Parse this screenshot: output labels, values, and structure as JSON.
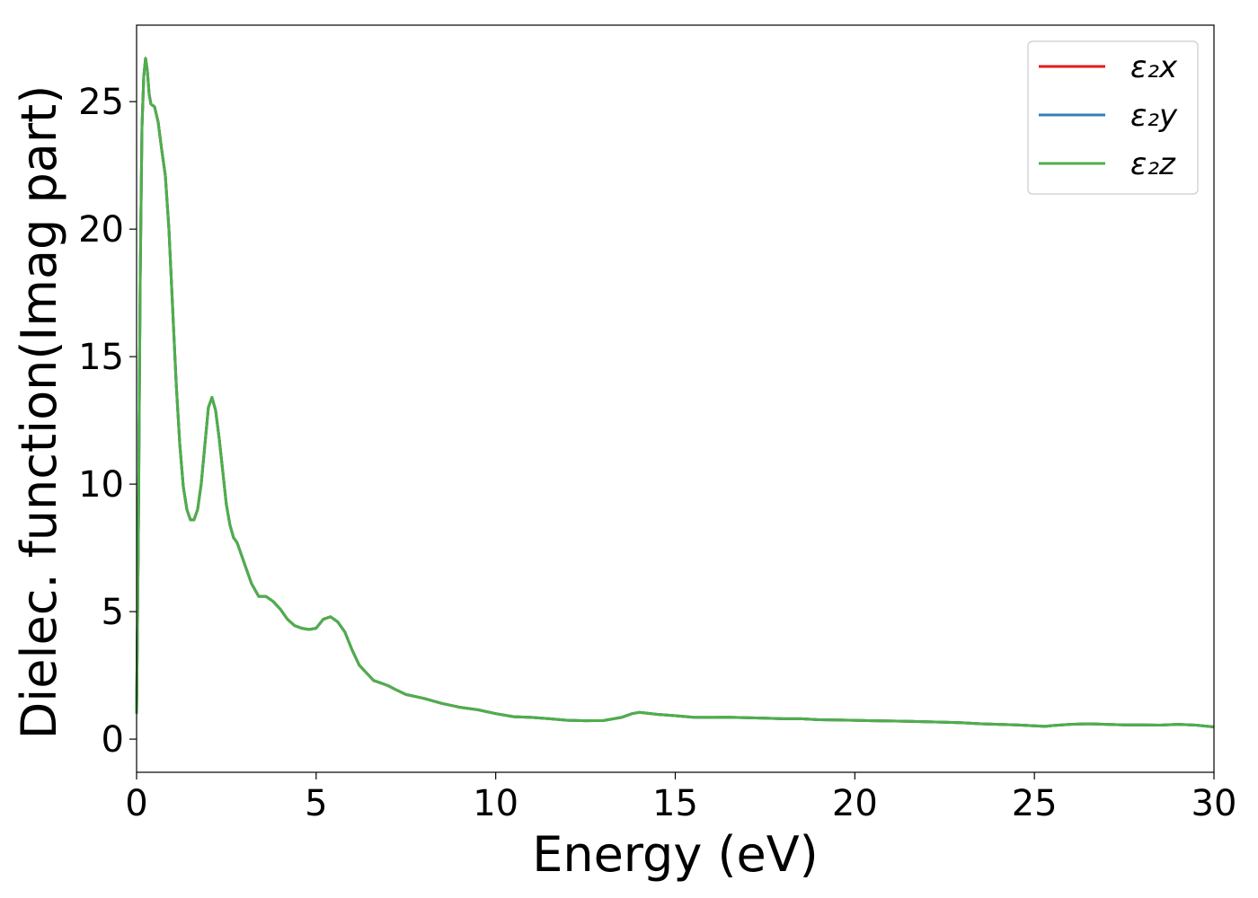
{
  "chart_data": {
    "type": "line",
    "xlabel": "Energy (eV)",
    "ylabel": "Dielec. function(Imag part)",
    "xlim": [
      0,
      30
    ],
    "ylim": [
      -1.3,
      28
    ],
    "xticks": [
      0,
      5,
      10,
      15,
      20,
      25,
      30
    ],
    "yticks": [
      0,
      5,
      10,
      15,
      20,
      25
    ],
    "grid": false,
    "legend_position": "top-right",
    "x": [
      0,
      0.05,
      0.1,
      0.15,
      0.2,
      0.25,
      0.3,
      0.35,
      0.4,
      0.5,
      0.6,
      0.7,
      0.8,
      0.9,
      1.0,
      1.1,
      1.2,
      1.3,
      1.4,
      1.5,
      1.6,
      1.7,
      1.8,
      1.9,
      2.0,
      2.1,
      2.2,
      2.3,
      2.4,
      2.5,
      2.6,
      2.7,
      2.8,
      2.9,
      3.0,
      3.2,
      3.4,
      3.6,
      3.8,
      4.0,
      4.2,
      4.4,
      4.6,
      4.8,
      5.0,
      5.2,
      5.4,
      5.6,
      5.8,
      6.0,
      6.2,
      6.4,
      6.5,
      6.6,
      6.8,
      7.0,
      7.2,
      7.5,
      8.0,
      8.5,
      9.0,
      9.5,
      10.0,
      10.5,
      11.0,
      11.5,
      12.0,
      12.5,
      13.0,
      13.5,
      13.8,
      14.0,
      14.5,
      15.0,
      15.5,
      16.0,
      16.5,
      17.0,
      17.5,
      18.0,
      18.5,
      19.0,
      19.5,
      20.0,
      20.5,
      21.0,
      21.5,
      22.0,
      22.5,
      23.0,
      23.5,
      24.0,
      24.5,
      25.0,
      25.3,
      25.5,
      26.0,
      26.5,
      27.0,
      27.5,
      28.0,
      28.5,
      29.0,
      29.5,
      30.0
    ],
    "series": [
      {
        "name": "ε₂x",
        "color": "#e41a1c",
        "values": [
          1.0,
          8.0,
          18.0,
          24.0,
          26.0,
          26.7,
          26.2,
          25.3,
          24.9,
          24.8,
          24.2,
          23.1,
          22.1,
          20.0,
          17.0,
          14.0,
          11.6,
          9.9,
          9.0,
          8.6,
          8.6,
          9.0,
          10.0,
          11.5,
          13.0,
          13.4,
          12.9,
          11.8,
          10.5,
          9.2,
          8.4,
          7.9,
          7.7,
          7.3,
          6.9,
          6.1,
          5.6,
          5.6,
          5.4,
          5.1,
          4.7,
          4.45,
          4.35,
          4.3,
          4.35,
          4.7,
          4.8,
          4.6,
          4.2,
          3.5,
          2.9,
          2.6,
          2.45,
          2.3,
          2.2,
          2.1,
          1.95,
          1.75,
          1.6,
          1.4,
          1.25,
          1.15,
          1.0,
          0.88,
          0.85,
          0.8,
          0.74,
          0.72,
          0.73,
          0.85,
          1.0,
          1.05,
          0.97,
          0.92,
          0.86,
          0.85,
          0.86,
          0.84,
          0.82,
          0.8,
          0.8,
          0.76,
          0.75,
          0.74,
          0.72,
          0.71,
          0.7,
          0.68,
          0.66,
          0.64,
          0.6,
          0.58,
          0.56,
          0.52,
          0.5,
          0.53,
          0.58,
          0.6,
          0.58,
          0.56,
          0.56,
          0.55,
          0.58,
          0.55,
          0.48
        ]
      },
      {
        "name": "ε₂y",
        "color": "#377eb8",
        "values": [
          1.0,
          8.0,
          18.0,
          24.0,
          26.0,
          26.7,
          26.2,
          25.3,
          24.9,
          24.8,
          24.2,
          23.1,
          22.1,
          20.0,
          17.0,
          14.0,
          11.6,
          9.9,
          9.0,
          8.6,
          8.6,
          9.0,
          10.0,
          11.5,
          13.0,
          13.4,
          12.9,
          11.8,
          10.5,
          9.2,
          8.4,
          7.9,
          7.7,
          7.3,
          6.9,
          6.1,
          5.6,
          5.6,
          5.4,
          5.1,
          4.7,
          4.45,
          4.35,
          4.3,
          4.35,
          4.7,
          4.8,
          4.6,
          4.2,
          3.5,
          2.9,
          2.6,
          2.45,
          2.3,
          2.2,
          2.1,
          1.95,
          1.75,
          1.6,
          1.4,
          1.25,
          1.15,
          1.0,
          0.88,
          0.85,
          0.8,
          0.74,
          0.72,
          0.73,
          0.85,
          1.0,
          1.05,
          0.97,
          0.92,
          0.86,
          0.85,
          0.86,
          0.84,
          0.82,
          0.8,
          0.8,
          0.76,
          0.75,
          0.74,
          0.72,
          0.71,
          0.7,
          0.68,
          0.66,
          0.64,
          0.6,
          0.58,
          0.56,
          0.52,
          0.5,
          0.53,
          0.58,
          0.6,
          0.58,
          0.56,
          0.56,
          0.55,
          0.58,
          0.55,
          0.48
        ]
      },
      {
        "name": "ε₂z",
        "color": "#4daf4a",
        "values": [
          1.0,
          8.0,
          18.0,
          24.0,
          26.0,
          26.7,
          26.2,
          25.3,
          24.9,
          24.8,
          24.2,
          23.1,
          22.1,
          20.0,
          17.0,
          14.0,
          11.6,
          9.9,
          9.0,
          8.6,
          8.6,
          9.0,
          10.0,
          11.5,
          13.0,
          13.4,
          12.9,
          11.8,
          10.5,
          9.2,
          8.4,
          7.9,
          7.7,
          7.3,
          6.9,
          6.1,
          5.6,
          5.6,
          5.4,
          5.1,
          4.7,
          4.45,
          4.35,
          4.3,
          4.35,
          4.7,
          4.8,
          4.6,
          4.2,
          3.5,
          2.9,
          2.6,
          2.45,
          2.3,
          2.2,
          2.1,
          1.95,
          1.75,
          1.6,
          1.4,
          1.25,
          1.15,
          1.0,
          0.88,
          0.85,
          0.8,
          0.74,
          0.72,
          0.73,
          0.85,
          1.0,
          1.05,
          0.97,
          0.92,
          0.86,
          0.85,
          0.86,
          0.84,
          0.82,
          0.8,
          0.8,
          0.76,
          0.75,
          0.74,
          0.72,
          0.71,
          0.7,
          0.68,
          0.66,
          0.64,
          0.6,
          0.58,
          0.56,
          0.52,
          0.5,
          0.53,
          0.58,
          0.6,
          0.58,
          0.56,
          0.56,
          0.55,
          0.58,
          0.55,
          0.48
        ]
      }
    ]
  }
}
